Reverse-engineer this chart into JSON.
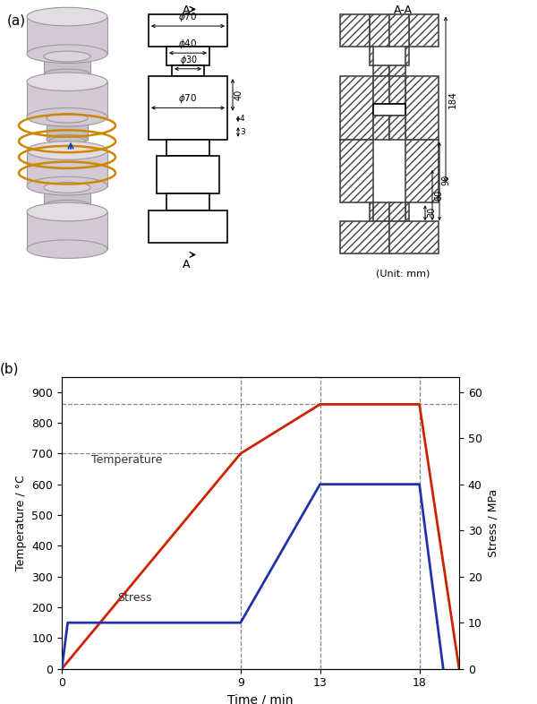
{
  "fig_width": 6.0,
  "fig_height": 7.86,
  "dpi": 100,
  "panel_a_label": "(a)",
  "panel_b_label": "(b)",
  "unit_label": "(Unit: mm)",
  "temp_data": {
    "time": [
      0,
      9,
      13,
      18,
      20
    ],
    "temp": [
      0,
      700,
      860,
      860,
      0
    ],
    "color": "#cc2200"
  },
  "stress_data_time": [
    0,
    0.3,
    9,
    13,
    18,
    19.2
  ],
  "stress_data_mpa": [
    0,
    10,
    10,
    40,
    40,
    0
  ],
  "stress_color": "#2233aa",
  "hline_700": 700,
  "hline_860": 860,
  "vlines": [
    9,
    13,
    18
  ],
  "temp_ylabel": "Temperature / °C",
  "stress_ylabel": "Stress / MPa",
  "xlabel": "Time / min",
  "ylim_temp": [
    0,
    950
  ],
  "ylim_stress_max": 63.33,
  "yticks_temp": [
    0,
    100,
    200,
    300,
    400,
    500,
    600,
    700,
    800,
    900
  ],
  "yticks_stress": [
    0,
    10,
    20,
    30,
    40,
    50,
    60
  ],
  "xticks": [
    0,
    9,
    13,
    18
  ],
  "xlim_max": 20,
  "hatch_color": "#444444",
  "line_color": "#000000",
  "body_color": "#d4c8d4",
  "top_color": "#e4dce4",
  "orange_color": "#cc8800",
  "blue_arrow_color": "#0044cc"
}
